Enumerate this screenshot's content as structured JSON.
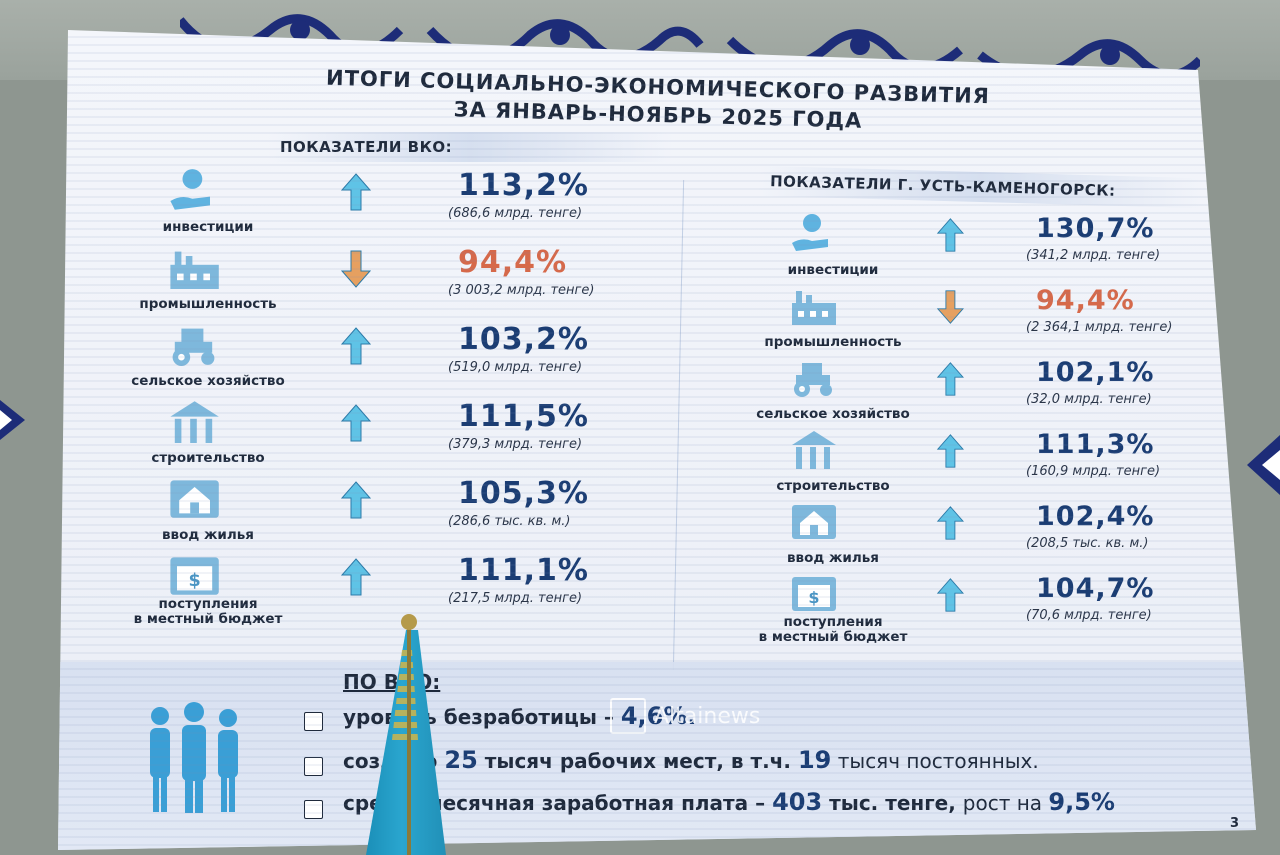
{
  "slide": {
    "title_line1": "ИТОГИ СОЦИАЛЬНО-ЭКОНОМИЧЕСКОГО РАЗВИТИЯ",
    "title_line2": "ЗА ЯНВАРЬ-НОЯБРЬ 2025 ГОДА",
    "page_number": "3",
    "left_heading": "ПОКАЗАТЕЛИ ВКО:",
    "right_heading": "ПОКАЗАТЕЛИ Г. УСТЬ-КАМЕНОГОРСК:",
    "left_indicators": [
      {
        "label": "инвестиции",
        "percent": "113,2%",
        "detail": "(686,6 млрд. тенге)",
        "trend": "up",
        "icon": "money-hand-icon"
      },
      {
        "label": "промышленность",
        "percent": "94,4%",
        "detail": "(3 003,2 млрд. тенге)",
        "trend": "down",
        "icon": "factory-icon"
      },
      {
        "label": "сельское хозяйство",
        "percent": "103,2%",
        "detail": "(519,0 млрд. тенге)",
        "trend": "up",
        "icon": "tractor-icon"
      },
      {
        "label": "строительство",
        "percent": "111,5%",
        "detail": "(379,3 млрд. тенге)",
        "trend": "up",
        "icon": "construction-icon"
      },
      {
        "label": "ввод жилья",
        "percent": "105,3%",
        "detail": "(286,6 тыс. кв. м.)",
        "trend": "up",
        "icon": "house-icon"
      },
      {
        "label_line1": "поступления",
        "label_line2": "в местный бюджет",
        "percent": "111,1%",
        "detail": "(217,5 млрд. тенге)",
        "trend": "up",
        "icon": "budget-dollar-icon"
      }
    ],
    "right_indicators": [
      {
        "label": "инвестиции",
        "percent": "130,7%",
        "detail": "(341,2 млрд. тенге)",
        "trend": "up",
        "icon": "money-hand-icon"
      },
      {
        "label": "промышленность",
        "percent": "94,4%",
        "detail": "(2 364,1 млрд. тенге)",
        "trend": "down",
        "icon": "factory-icon"
      },
      {
        "label": "сельское хозяйство",
        "percent": "102,1%",
        "detail": "(32,0 млрд. тенге)",
        "trend": "up",
        "icon": "tractor-icon"
      },
      {
        "label": "строительство",
        "percent": "111,3%",
        "detail": "(160,9 млрд. тенге)",
        "trend": "up",
        "icon": "construction-icon"
      },
      {
        "label": "ввод жилья",
        "percent": "102,4%",
        "detail": "(208,5 тыс. кв. м.)",
        "trend": "up",
        "icon": "house-icon"
      },
      {
        "label_line1": "поступления",
        "label_line2": "в местный бюджет",
        "percent": "104,7%",
        "detail": "(70,6 млрд. тенге)",
        "trend": "up",
        "icon": "budget-dollar-icon"
      }
    ],
    "summary_heading": "ПО ВКО:",
    "summary": {
      "b1_text": "уровень безработицы – ",
      "b1_num": "4,6%.",
      "b2_a": "создано ",
      "b2_num1": "25",
      "b2_b": " тысяч рабочих мест, в т.ч. ",
      "b2_num2": "19",
      "b2_c": " тысяч постоянных.",
      "b3_a": "среднемесячная заработная плата – ",
      "b3_num1": "403",
      "b3_b": " тыс. тенге, ",
      "b3_c": "рост на ",
      "b3_num2": "9,5%"
    },
    "watermark": "Altainews"
  },
  "colors": {
    "up": "#1b3d73",
    "down": "#d6694a",
    "arrow_up": "#5fc3e6",
    "arrow_down": "#e6a060",
    "ornament": "#1d2c78"
  }
}
